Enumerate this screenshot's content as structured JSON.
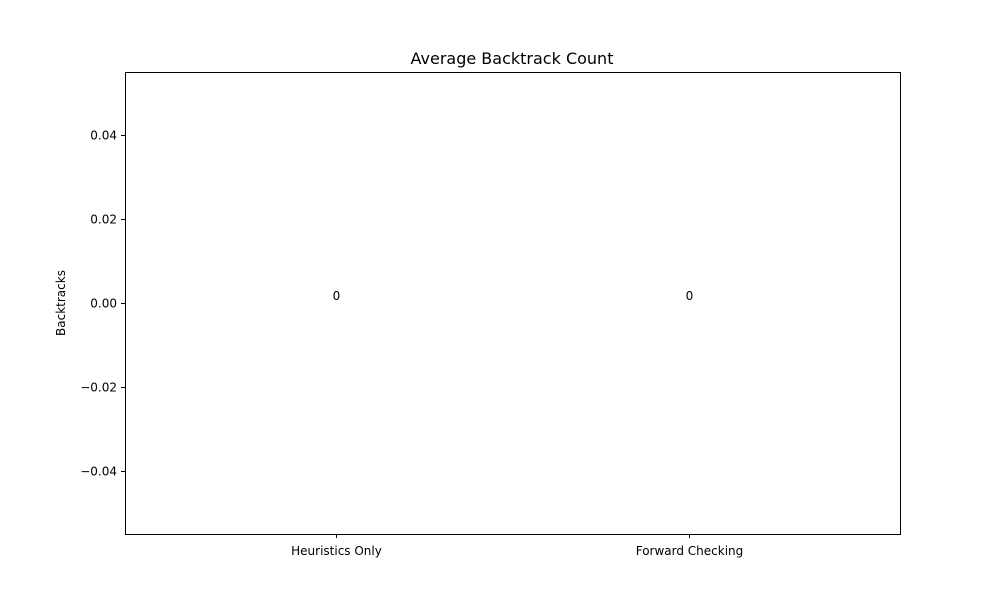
{
  "chart_data": {
    "type": "bar",
    "title": "Average Backtrack Count",
    "xlabel": "",
    "ylabel": "Backtracks",
    "categories": [
      "Heuristics Only",
      "Forward Checking"
    ],
    "values": [
      0,
      0
    ],
    "data_labels": [
      "0",
      "0"
    ],
    "ylim": [
      -0.055,
      0.055
    ],
    "yticks": [
      -0.04,
      -0.02,
      0.0,
      0.02,
      0.04
    ],
    "ytick_labels": [
      "−0.04",
      "−0.02",
      "0.00",
      "0.02",
      "0.04"
    ],
    "grid": false,
    "bar_color": "#1f77b4"
  }
}
